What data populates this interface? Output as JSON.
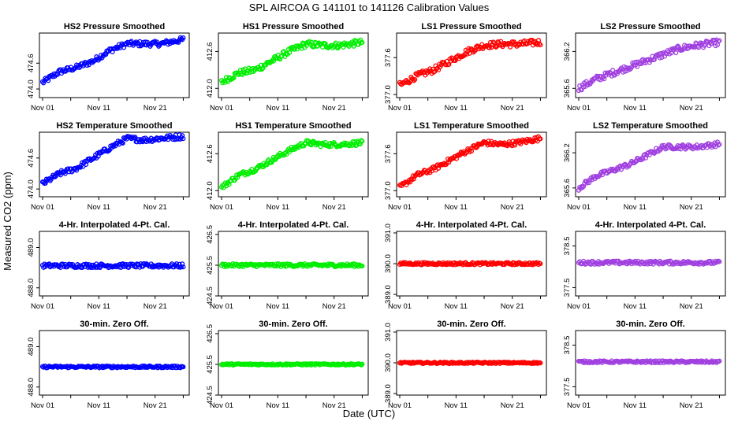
{
  "page": {
    "title": "SPL   AIRCOA G   141101 to 141126   Calibration Values",
    "xlabel": "Date (UTC)",
    "ylabel": "Measured CO2 (ppm)"
  },
  "colors": {
    "HS2": "#0000ff",
    "HS1": "#00ee00",
    "LS1": "#ff0000",
    "LS2": "#a040e0",
    "axis": "#000000"
  },
  "chart_data": [
    {
      "type": "scatter",
      "id": "hs2-pressure",
      "title": "HS2 Pressure Smoothed",
      "series_color": "HS2",
      "xlim": [
        0,
        25.5
      ],
      "ylim": [
        473.8,
        475.3
      ],
      "yticks": [
        "474.0",
        "474.6"
      ],
      "ytick_values": [
        474.0,
        474.6
      ],
      "xticks": [
        "Nov 01",
        "Nov 11",
        "Nov 21"
      ],
      "xtick_values": [
        0,
        10,
        20
      ],
      "trend_x": [
        0,
        3,
        6,
        9,
        12,
        15,
        18,
        21,
        25
      ],
      "trend_y": [
        474.15,
        474.4,
        474.5,
        474.65,
        474.9,
        475.05,
        475.05,
        475.05,
        475.15
      ],
      "noise": 0.06
    },
    {
      "type": "scatter",
      "id": "hs1-pressure",
      "title": "HS1 Pressure Smoothed",
      "series_color": "HS1",
      "xlim": [
        0,
        25.5
      ],
      "ylim": [
        411.85,
        412.9
      ],
      "yticks": [
        "412.0",
        "412.6"
      ],
      "ytick_values": [
        412.0,
        412.6
      ],
      "xticks": [
        "Nov 01",
        "Nov 11",
        "Nov 21"
      ],
      "xtick_values": [
        0,
        10,
        20
      ],
      "trend_x": [
        0,
        3,
        6,
        9,
        12,
        15,
        18,
        21,
        25
      ],
      "trend_y": [
        412.1,
        412.25,
        412.3,
        412.45,
        412.6,
        412.72,
        412.7,
        412.7,
        412.75
      ],
      "noise": 0.05
    },
    {
      "type": "scatter",
      "id": "ls1-pressure",
      "title": "LS1 Pressure Smoothed",
      "series_color": "LS1",
      "xlim": [
        0,
        25.5
      ],
      "ylim": [
        376.95,
        378.0
      ],
      "yticks": [
        "377.0",
        "377.6"
      ],
      "ytick_values": [
        377.0,
        377.6
      ],
      "xticks": [
        "Nov 01",
        "Nov 11",
        "Nov 21"
      ],
      "xtick_values": [
        0,
        10,
        20
      ],
      "trend_x": [
        0,
        3,
        6,
        9,
        12,
        15,
        18,
        21,
        25
      ],
      "trend_y": [
        377.15,
        377.3,
        377.4,
        377.55,
        377.7,
        377.8,
        377.82,
        377.82,
        377.85
      ],
      "noise": 0.05
    },
    {
      "type": "scatter",
      "id": "ls2-pressure",
      "title": "LS2 Pressure Smoothed",
      "series_color": "LS2",
      "xlim": [
        0,
        25.5
      ],
      "ylim": [
        365.45,
        366.5
      ],
      "yticks": [
        "365.6",
        "366.2"
      ],
      "ytick_values": [
        365.6,
        366.2
      ],
      "xticks": [
        "Nov 01",
        "Nov 11",
        "Nov 21"
      ],
      "xtick_values": [
        0,
        10,
        20
      ],
      "trend_x": [
        0,
        3,
        6,
        9,
        12,
        15,
        18,
        21,
        25
      ],
      "trend_y": [
        365.6,
        365.75,
        365.85,
        365.95,
        366.05,
        366.15,
        366.25,
        366.3,
        366.35
      ],
      "noise": 0.05
    },
    {
      "type": "scatter",
      "id": "hs2-temperature",
      "title": "HS2 Temperature Smoothed",
      "series_color": "HS2",
      "xlim": [
        0,
        25.5
      ],
      "ylim": [
        473.85,
        475.1
      ],
      "yticks": [
        "474.0",
        "474.6"
      ],
      "ytick_values": [
        474.0,
        474.6
      ],
      "xticks": [
        "Nov 01",
        "Nov 11",
        "Nov 21"
      ],
      "xtick_values": [
        0,
        10,
        20
      ],
      "trend_x": [
        0,
        3,
        6,
        9,
        12,
        15,
        18,
        21,
        25
      ],
      "trend_y": [
        474.1,
        474.3,
        474.4,
        474.6,
        474.8,
        474.98,
        474.95,
        474.98,
        475.02
      ],
      "noise": 0.05
    },
    {
      "type": "scatter",
      "id": "hs1-temperature",
      "title": "HS1 Temperature Smoothed",
      "series_color": "HS1",
      "xlim": [
        0,
        25.5
      ],
      "ylim": [
        411.9,
        412.95
      ],
      "yticks": [
        "412.0",
        "412.6"
      ],
      "ytick_values": [
        412.0,
        412.6
      ],
      "xticks": [
        "Nov 01",
        "Nov 11",
        "Nov 21"
      ],
      "xtick_values": [
        0,
        10,
        20
      ],
      "trend_x": [
        0,
        3,
        6,
        9,
        12,
        15,
        18,
        21,
        25
      ],
      "trend_y": [
        412.05,
        412.25,
        412.35,
        412.5,
        412.65,
        412.78,
        412.75,
        412.75,
        412.78
      ],
      "noise": 0.04
    },
    {
      "type": "scatter",
      "id": "ls1-temperature",
      "title": "LS1 Temperature Smoothed",
      "series_color": "LS1",
      "xlim": [
        0,
        25.5
      ],
      "ylim": [
        376.9,
        377.95
      ],
      "yticks": [
        "377.0",
        "377.6"
      ],
      "ytick_values": [
        377.0,
        377.6
      ],
      "xticks": [
        "Nov 01",
        "Nov 11",
        "Nov 21"
      ],
      "xtick_values": [
        0,
        10,
        20
      ],
      "trend_x": [
        0,
        3,
        6,
        9,
        12,
        15,
        18,
        21,
        25
      ],
      "trend_y": [
        377.05,
        377.25,
        377.35,
        377.5,
        377.65,
        377.78,
        377.75,
        377.78,
        377.85
      ],
      "noise": 0.04
    },
    {
      "type": "scatter",
      "id": "ls2-temperature",
      "title": "LS2 Temperature Smoothed",
      "series_color": "LS2",
      "xlim": [
        0,
        25.5
      ],
      "ylim": [
        365.45,
        366.55
      ],
      "yticks": [
        "365.6",
        "366.2"
      ],
      "ytick_values": [
        365.6,
        366.2
      ],
      "xticks": [
        "Nov 01",
        "Nov 11",
        "Nov 21"
      ],
      "xtick_values": [
        0,
        10,
        20
      ],
      "trend_x": [
        0,
        3,
        6,
        9,
        12,
        15,
        18,
        21,
        25
      ],
      "trend_y": [
        365.6,
        365.8,
        365.9,
        366.0,
        366.15,
        366.3,
        366.3,
        366.3,
        366.35
      ],
      "noise": 0.04
    },
    {
      "type": "scatter",
      "id": "hs2-interp",
      "title": "4-Hr. Interpolated 4-Pt. Cal.",
      "series_color": "HS2",
      "xlim": [
        0,
        25.5
      ],
      "ylim": [
        487.8,
        489.4
      ],
      "yticks": [
        "488.0",
        "489.0"
      ],
      "ytick_values": [
        488.0,
        489.0
      ],
      "xticks": [
        "Nov 01",
        "Nov 11",
        "Nov 21"
      ],
      "xtick_values": [
        0,
        10,
        20
      ],
      "trend_x": [
        0,
        25
      ],
      "trend_y": [
        488.55,
        488.55
      ],
      "noise": 0.05
    },
    {
      "type": "scatter",
      "id": "hs1-interp",
      "title": "4-Hr. Interpolated 4-Pt. Cal.",
      "series_color": "HS1",
      "xlim": [
        0,
        25.5
      ],
      "ylim": [
        424.5,
        426.6
      ],
      "yticks": [
        "424.5",
        "425.5",
        "426.5"
      ],
      "ytick_values": [
        424.5,
        425.5,
        426.5
      ],
      "xticks": [
        "Nov 01",
        "Nov 11",
        "Nov 21"
      ],
      "xtick_values": [
        0,
        10,
        20
      ],
      "trend_x": [
        0,
        25
      ],
      "trend_y": [
        425.5,
        425.5
      ],
      "noise": 0.05
    },
    {
      "type": "scatter",
      "id": "ls1-interp",
      "title": "4-Hr. Interpolated 4-Pt. Cal.",
      "series_color": "LS1",
      "xlim": [
        0,
        25.5
      ],
      "ylim": [
        388.95,
        391.05
      ],
      "yticks": [
        "389.0",
        "390.0",
        "391.0"
      ],
      "ytick_values": [
        389.0,
        390.0,
        391.0
      ],
      "xticks": [
        "Nov 01",
        "Nov 11",
        "Nov 21"
      ],
      "xtick_values": [
        0,
        10,
        20
      ],
      "trend_x": [
        0,
        25
      ],
      "trend_y": [
        390.0,
        390.0
      ],
      "noise": 0.04
    },
    {
      "type": "scatter",
      "id": "ls2-interp",
      "title": "4-Hr. Interpolated 4-Pt. Cal.",
      "series_color": "LS2",
      "xlim": [
        0,
        25.5
      ],
      "ylim": [
        377.3,
        378.85
      ],
      "yticks": [
        "377.5",
        "378.5"
      ],
      "ytick_values": [
        377.5,
        378.5
      ],
      "xticks": [
        "Nov 01",
        "Nov 11",
        "Nov 21"
      ],
      "xtick_values": [
        0,
        10,
        20
      ],
      "trend_x": [
        0,
        25
      ],
      "trend_y": [
        378.1,
        378.1
      ],
      "noise": 0.04
    },
    {
      "type": "scatter",
      "id": "hs2-zero",
      "title": "30-min. Zero Off.",
      "series_color": "HS2",
      "xlim": [
        0,
        25.5
      ],
      "ylim": [
        487.8,
        489.4
      ],
      "yticks": [
        "488.0",
        "489.0"
      ],
      "ytick_values": [
        488.0,
        489.0
      ],
      "xticks": [
        "Nov 01",
        "Nov 11",
        "Nov 21"
      ],
      "xtick_values": [
        0,
        10,
        20
      ],
      "trend_x": [
        0,
        25
      ],
      "trend_y": [
        488.5,
        488.5
      ],
      "noise": 0.025
    },
    {
      "type": "scatter",
      "id": "hs1-zero",
      "title": "30-min. Zero Off.",
      "series_color": "HS1",
      "xlim": [
        0,
        25.5
      ],
      "ylim": [
        424.5,
        426.6
      ],
      "yticks": [
        "424.5",
        "425.5",
        "426.5"
      ],
      "ytick_values": [
        424.5,
        425.5,
        426.5
      ],
      "xticks": [
        "Nov 01",
        "Nov 11",
        "Nov 21"
      ],
      "xtick_values": [
        0,
        10,
        20
      ],
      "trend_x": [
        0,
        25
      ],
      "trend_y": [
        425.5,
        425.5
      ],
      "noise": 0.025
    },
    {
      "type": "scatter",
      "id": "ls1-zero",
      "title": "30-min. Zero Off.",
      "series_color": "LS1",
      "xlim": [
        0,
        25.5
      ],
      "ylim": [
        388.95,
        391.05
      ],
      "yticks": [
        "389.0",
        "390.0",
        "391.0"
      ],
      "ytick_values": [
        389.0,
        390.0,
        391.0
      ],
      "xticks": [
        "Nov 01",
        "Nov 11",
        "Nov 21"
      ],
      "xtick_values": [
        0,
        10,
        20
      ],
      "trend_x": [
        0,
        25
      ],
      "trend_y": [
        390.0,
        390.0
      ],
      "noise": 0.025
    },
    {
      "type": "scatter",
      "id": "ls2-zero",
      "title": "30-min. Zero Off.",
      "series_color": "LS2",
      "xlim": [
        0,
        25.5
      ],
      "ylim": [
        377.3,
        378.85
      ],
      "yticks": [
        "377.5",
        "378.5"
      ],
      "ytick_values": [
        377.5,
        378.5
      ],
      "xticks": [
        "Nov 01",
        "Nov 11",
        "Nov 21"
      ],
      "xtick_values": [
        0,
        10,
        20
      ],
      "trend_x": [
        0,
        25
      ],
      "trend_y": [
        378.1,
        378.1
      ],
      "noise": 0.025
    }
  ]
}
